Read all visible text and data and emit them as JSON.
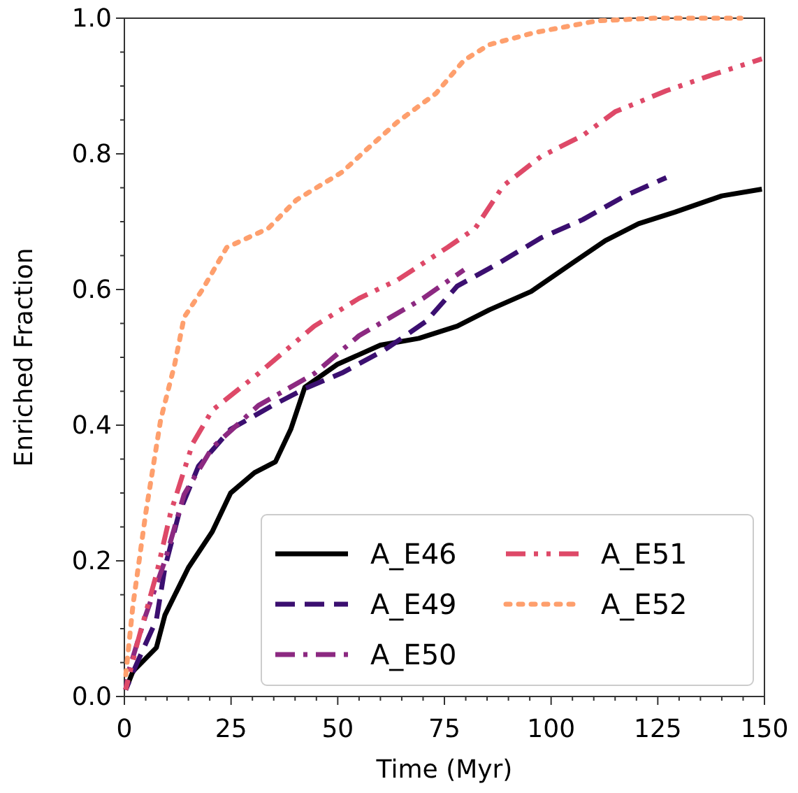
{
  "chart_data": {
    "type": "line",
    "xlabel": "Time (Myr)",
    "ylabel": "Enriched Fraction",
    "xlim": [
      0,
      150
    ],
    "ylim": [
      0,
      1
    ],
    "xticks": [
      0,
      25,
      50,
      75,
      100,
      125,
      150,
      {
        "value": 5,
        "label": null
      },
      {
        "value": 10,
        "label": null
      },
      {
        "value": 15,
        "label": null
      },
      {
        "value": 20,
        "label": null
      },
      {
        "value": 30,
        "label": null
      },
      {
        "value": 35,
        "label": null
      },
      {
        "value": 40,
        "label": null
      },
      {
        "value": 45,
        "label": null
      },
      {
        "value": 55,
        "label": null
      },
      {
        "value": 60,
        "label": null
      },
      {
        "value": 65,
        "label": null
      },
      {
        "value": 70,
        "label": null
      },
      {
        "value": 80,
        "label": null
      },
      {
        "value": 85,
        "label": null
      },
      {
        "value": 90,
        "label": null
      },
      {
        "value": 95,
        "label": null
      },
      {
        "value": 105,
        "label": null
      },
      {
        "value": 110,
        "label": null
      },
      {
        "value": 115,
        "label": null
      },
      {
        "value": 120,
        "label": null
      },
      {
        "value": 130,
        "label": null
      },
      {
        "value": 135,
        "label": null
      },
      {
        "value": 140,
        "label": null
      },
      {
        "value": 145,
        "label": null
      }
    ],
    "yticks": [
      {
        "value": 0,
        "label": "0.0"
      },
      {
        "value": 0.2,
        "label": "0.2"
      },
      {
        "value": 0.4,
        "label": "0.4"
      },
      {
        "value": 0.6,
        "label": "0.6"
      },
      {
        "value": 0.8,
        "label": "0.8"
      },
      {
        "value": 1,
        "label": "1.0"
      },
      {
        "value": 0.05,
        "label": null
      },
      {
        "value": 0.1,
        "label": null
      },
      {
        "value": 0.15,
        "label": null
      },
      {
        "value": 0.25,
        "label": null
      },
      {
        "value": 0.3,
        "label": null
      },
      {
        "value": 0.35,
        "label": null
      },
      {
        "value": 0.45,
        "label": null
      },
      {
        "value": 0.5,
        "label": null
      },
      {
        "value": 0.55,
        "label": null
      },
      {
        "value": 0.65,
        "label": null
      },
      {
        "value": 0.7,
        "label": null
      },
      {
        "value": 0.75,
        "label": null
      },
      {
        "value": 0.85,
        "label": null
      },
      {
        "value": 0.9,
        "label": null
      },
      {
        "value": 0.95,
        "label": null
      }
    ],
    "legend": "bottom right",
    "marker": "none",
    "grid": false,
    "series": [
      {
        "name": "A_E46",
        "color": "#000000",
        "line_style": "solid",
        "x": [
          0.3,
          2,
          7.5,
          9.5,
          15,
          20.6,
          24.9,
          30.5,
          35.4,
          39,
          42.3,
          50,
          60,
          69,
          78,
          85.5,
          95.3,
          105,
          112.7,
          120.5,
          129,
          140,
          149.4
        ],
        "values": [
          0.01,
          0.037,
          0.072,
          0.12,
          0.19,
          0.243,
          0.3,
          0.33,
          0.346,
          0.394,
          0.456,
          0.49,
          0.518,
          0.528,
          0.546,
          0.57,
          0.597,
          0.639,
          0.672,
          0.697,
          0.714,
          0.738,
          0.748
        ]
      },
      {
        "name": "A_E49",
        "color": "#3b0f70",
        "line_style": "dashed",
        "x": [
          0.3,
          3,
          7.5,
          9.5,
          12.8,
          17.4,
          24.9,
          34.7,
          42.3,
          51,
          61,
          70.7,
          78,
          87.8,
          97.6,
          107.4,
          117.3,
          127
        ],
        "values": [
          0.01,
          0.05,
          0.113,
          0.19,
          0.27,
          0.34,
          0.394,
          0.429,
          0.454,
          0.477,
          0.511,
          0.553,
          0.605,
          0.639,
          0.676,
          0.703,
          0.738,
          0.765
        ]
      },
      {
        "name": "A_E50",
        "color": "#8c2981",
        "line_style": "dashdot",
        "x": [
          0.3,
          1,
          5,
          9.5,
          14,
          20.6,
          31.4,
          44.5,
          55,
          70,
          79.6
        ],
        "values": [
          0.01,
          0.037,
          0.12,
          0.2,
          0.298,
          0.367,
          0.429,
          0.476,
          0.532,
          0.587,
          0.629
        ]
      },
      {
        "name": "A_E51",
        "color": "#de4968",
        "line_style": "dashdotdot",
        "x": [
          0.3,
          3,
          7.5,
          10.8,
          16,
          20.6,
          31.4,
          44.5,
          55,
          64,
          75.7,
          82.2,
          88.8,
          97.6,
          107.4,
          115,
          127,
          138,
          149.4
        ],
        "values": [
          0.01,
          0.078,
          0.18,
          0.27,
          0.373,
          0.422,
          0.476,
          0.546,
          0.587,
          0.614,
          0.662,
          0.69,
          0.753,
          0.796,
          0.827,
          0.862,
          0.893,
          0.917,
          0.94
        ]
      },
      {
        "name": "A_E52",
        "color": "#fe9f6d",
        "line_style": "dotted",
        "x": [
          0.3,
          2,
          5,
          8.5,
          11.8,
          14,
          18.3,
          24,
          33.7,
          40.3,
          51,
          56.7,
          64,
          73,
          79.6,
          85.5,
          96.3,
          110.7,
          124,
          144.5
        ],
        "values": [
          0.03,
          0.134,
          0.27,
          0.408,
          0.49,
          0.559,
          0.6,
          0.662,
          0.69,
          0.732,
          0.773,
          0.806,
          0.847,
          0.889,
          0.938,
          0.961,
          0.979,
          0.996,
          1.0,
          1.0
        ]
      }
    ]
  }
}
